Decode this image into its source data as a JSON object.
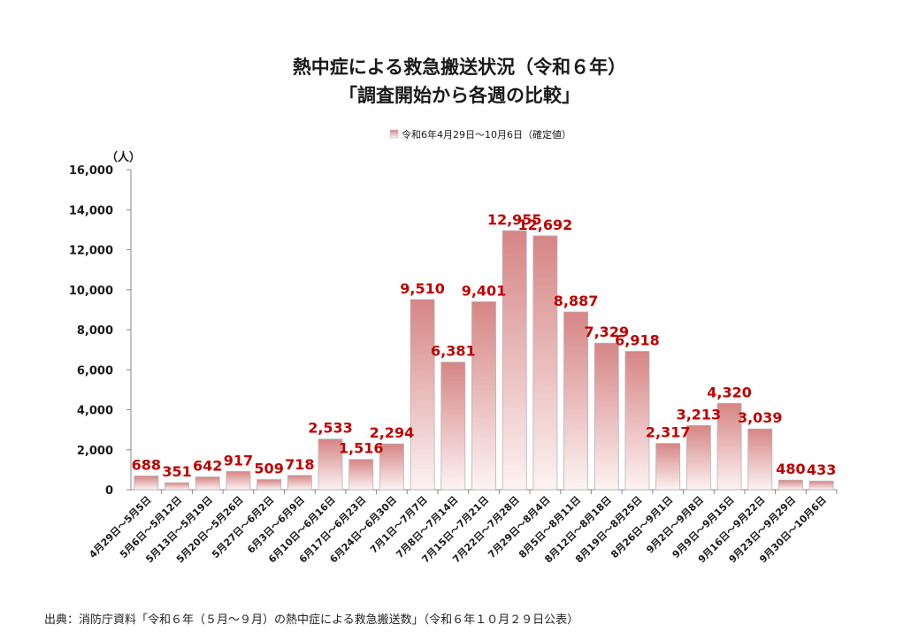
{
  "chart_data": {
    "type": "bar",
    "title_line1": "熱中症による救急搬送状況（令和６年）",
    "title_line2": "「調査開始から各週の比較」",
    "legend": "令和6年4月29日～10月6日（確定値）",
    "legend_position": "top-center",
    "y_unit": "（人）",
    "ylim": [
      0,
      16000
    ],
    "y_ticks": [
      "0",
      "2,000",
      "4,000",
      "6,000",
      "8,000",
      "10,000",
      "12,000",
      "14,000",
      "16,000"
    ],
    "grid": false,
    "categories": [
      "4月29日～5月5日",
      "5月6日～5月12日",
      "5月13日～5月19日",
      "5月20日～5月26日",
      "5月27日～6月2日",
      "6月3日～6月9日",
      "6月10日～6月16日",
      "6月17日～6月23日",
      "6月24日～6月30日",
      "7月1日～7月7日",
      "7月8日～7月14日",
      "7月15日～7月21日",
      "7月22日～7月28日",
      "7月29日～8月4日",
      "8月5日～8月11日",
      "8月12日～8月18日",
      "8月19日～8月25日",
      "8月26日～9月1日",
      "9月2日～9月8日",
      "9月9日～9月15日",
      "9月16日～9月22日",
      "9月23日～9月29日",
      "9月30日～10月6日"
    ],
    "values": [
      688,
      351,
      642,
      917,
      509,
      718,
      2533,
      1516,
      2294,
      9510,
      6381,
      9401,
      12955,
      12692,
      8887,
      7329,
      6918,
      2317,
      3213,
      4320,
      3039,
      480,
      433
    ],
    "data_labels": [
      "688",
      "351",
      "642",
      "917",
      "509",
      "718",
      "2,533",
      "1,516",
      "2,294",
      "9,510",
      "6,381",
      "9,401",
      "12,955",
      "12,692",
      "8,887",
      "7,329",
      "6,918",
      "2,317",
      "3,213",
      "4,320",
      "3,039",
      "480",
      "433"
    ],
    "colors": {
      "bar_top": "#d68585",
      "bar_bottom": "#fdf3f3",
      "bar_edge": "#b5b5b5",
      "data_label": "#c00000",
      "axis": "#888888",
      "text": "#1a1a1a"
    }
  },
  "source_note": "出典：消防庁資料「令和６年（５月～９月）の熱中症による救急搬送数」（令和６年１０月２９日公表）"
}
